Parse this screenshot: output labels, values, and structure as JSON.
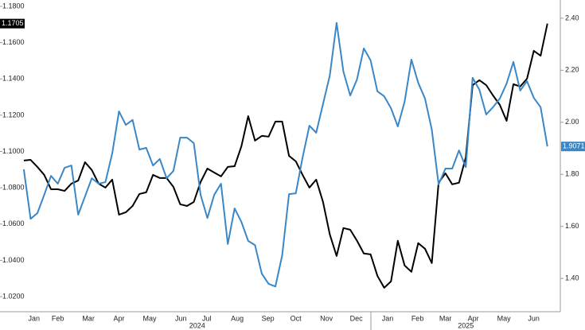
{
  "chart_data": {
    "type": "line",
    "x": [
      0,
      1,
      2,
      3,
      4,
      5,
      6,
      7,
      8,
      9,
      10,
      11,
      12,
      13,
      14,
      15,
      16,
      17,
      18,
      19,
      20,
      21,
      22,
      23,
      24,
      25,
      26,
      27,
      28,
      29,
      30,
      31,
      32,
      33,
      34,
      35,
      36,
      37,
      38,
      39,
      40,
      41,
      42,
      43,
      44,
      45,
      46,
      47,
      48,
      49,
      50,
      51,
      52,
      53,
      54,
      55,
      56,
      57,
      58,
      59,
      60,
      61,
      62,
      63,
      64,
      65,
      66,
      67,
      68,
      69,
      70,
      71,
      72,
      73,
      74,
      75,
      76,
      77
    ],
    "xlim": [
      -3.5,
      78.9
    ],
    "xticks": [
      {
        "value": 1.5,
        "label": "Jan"
      },
      {
        "value": 5.0,
        "label": "Feb"
      },
      {
        "value": 9.5,
        "label": "Mar"
      },
      {
        "value": 14.0,
        "label": "Apr"
      },
      {
        "value": 18.5,
        "label": "May"
      },
      {
        "value": 23.1,
        "label": "Jun"
      },
      {
        "value": 26.9,
        "label": "Jul"
      },
      {
        "value": 31.4,
        "label": "Aug"
      },
      {
        "value": 35.9,
        "label": "Sep"
      },
      {
        "value": 40.0,
        "label": "Oct"
      },
      {
        "value": 44.5,
        "label": "Nov"
      },
      {
        "value": 48.9,
        "label": "Dec"
      },
      {
        "value": 53.5,
        "label": "Jan"
      },
      {
        "value": 57.9,
        "label": "Feb"
      },
      {
        "value": 62.0,
        "label": "Mar"
      },
      {
        "value": 66.1,
        "label": "Apr"
      },
      {
        "value": 70.6,
        "label": "May"
      },
      {
        "value": 75.0,
        "label": "Jun"
      }
    ],
    "year_ticks": [
      {
        "value": 25.5,
        "label": "2024"
      },
      {
        "value": 65.0,
        "label": "2025"
      }
    ],
    "ylim": [
      1.0117,
      1.1835
    ],
    "yticks": [
      {
        "value": 1.18,
        "label": "1.1800"
      },
      {
        "value": 1.16,
        "label": "1.1600"
      },
      {
        "value": 1.14,
        "label": "1.1400"
      },
      {
        "value": 1.12,
        "label": "1.1200"
      },
      {
        "value": 1.1,
        "label": "1.1000"
      },
      {
        "value": 1.08,
        "label": "1.0800"
      },
      {
        "value": 1.06,
        "label": "1.0600"
      },
      {
        "value": 1.04,
        "label": "1.0400"
      },
      {
        "value": 1.02,
        "label": "1.0200"
      }
    ],
    "y2lim": [
      1.272,
      2.47
    ],
    "y2ticks": [
      {
        "value": 2.4,
        "label": "2.40"
      },
      {
        "value": 2.2,
        "label": "2.20"
      },
      {
        "value": 2.0,
        "label": "2.00"
      },
      {
        "value": 1.8,
        "label": "1.80"
      },
      {
        "value": 1.6,
        "label": "1.60"
      },
      {
        "value": 1.4,
        "label": "1.40"
      }
    ],
    "grid": false,
    "series": [
      {
        "color": "#000000",
        "axis": "y",
        "values": [
          1.095,
          1.0954,
          1.0915,
          1.0871,
          1.0792,
          1.0792,
          1.0783,
          1.0823,
          1.084,
          1.0941,
          1.0898,
          1.0823,
          1.0801,
          1.0845,
          1.0652,
          1.0665,
          1.07,
          1.0766,
          1.0775,
          1.0871,
          1.0854,
          1.0854,
          1.0805,
          1.0709,
          1.07,
          1.0722,
          1.0832,
          1.0906,
          1.0884,
          1.0863,
          1.0915,
          1.0919,
          1.1029,
          1.1195,
          1.106,
          1.1086,
          1.1082,
          1.1165,
          1.1165,
          1.0976,
          1.0946,
          1.0871,
          1.0801,
          1.0845,
          1.0722,
          1.0543,
          1.0424,
          1.0578,
          1.0569,
          1.0508,
          1.0438,
          1.0433,
          1.0315,
          1.0249,
          1.0284,
          1.0508,
          1.0372,
          1.0337,
          1.0495,
          1.0464,
          1.0385,
          1.0828,
          1.088,
          1.0819,
          1.0828,
          1.0968,
          1.1366,
          1.1393,
          1.1366,
          1.1309,
          1.1257,
          1.1169,
          1.1371,
          1.1358,
          1.1401,
          1.1555,
          1.1528,
          1.1705
        ]
      },
      {
        "color": "#3a87c8",
        "axis": "y2",
        "values": [
          1.819,
          1.629,
          1.651,
          1.721,
          1.794,
          1.764,
          1.825,
          1.834,
          1.645,
          1.715,
          1.785,
          1.764,
          1.77,
          1.88,
          2.042,
          1.99,
          2.009,
          1.895,
          1.902,
          1.834,
          1.859,
          1.785,
          1.813,
          1.941,
          1.941,
          1.92,
          1.721,
          1.632,
          1.721,
          1.764,
          1.532,
          1.669,
          1.617,
          1.544,
          1.528,
          1.418,
          1.379,
          1.369,
          1.489,
          1.724,
          1.727,
          1.865,
          1.987,
          1.96,
          2.07,
          2.18,
          2.382,
          2.195,
          2.103,
          2.165,
          2.284,
          2.238,
          2.119,
          2.1,
          2.054,
          1.984,
          2.079,
          2.241,
          2.152,
          2.091,
          1.972,
          1.761,
          1.822,
          1.822,
          1.892,
          1.828,
          2.171,
          2.125,
          2.03,
          2.058,
          2.091,
          2.149,
          2.232,
          2.122,
          2.158,
          2.094,
          2.058,
          1.9071
        ]
      }
    ]
  }
}
